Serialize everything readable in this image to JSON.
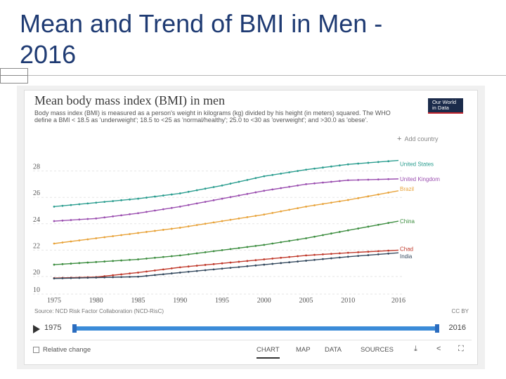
{
  "slide": {
    "title_line1": "Mean and Trend of BMI in Men -",
    "title_line2": "2016"
  },
  "chart_header": {
    "title": "Mean body mass index (BMI) in men",
    "subtitle": "Body mass index (BMI) is measured as a person's weight in kilograms (kg) divided by his height (in meters) squared. The WHO define a BMI < 18.5 as 'underweight'; 18.5 to <25 as 'normal/healthy'; 25.0 to <30 as 'overweight'; and >30.0 as 'obese'.",
    "logo_line1": "Our World",
    "logo_line2": "in Data",
    "add_country": "Add country"
  },
  "chart_data": {
    "type": "line",
    "x": [
      1975,
      1980,
      1985,
      1990,
      1995,
      2000,
      2005,
      2010,
      2016
    ],
    "xticks": [
      "1975",
      "1980",
      "1985",
      "1990",
      "1995",
      "2000",
      "2005",
      "2010",
      "2016"
    ],
    "yticks": [
      "10",
      "20",
      "22",
      "24",
      "26",
      "28"
    ],
    "ylim": [
      10,
      29
    ],
    "grid": "horizontal",
    "legend": "end-of-line labels",
    "series": [
      {
        "name": "United States",
        "color": "#2a9d8f",
        "values": [
          25.3,
          25.6,
          25.9,
          26.3,
          26.9,
          27.6,
          28.1,
          28.5,
          28.8
        ]
      },
      {
        "name": "United Kingdom",
        "color": "#9b4fb0",
        "values": [
          24.2,
          24.4,
          24.8,
          25.3,
          25.9,
          26.5,
          27.0,
          27.3,
          27.4
        ]
      },
      {
        "name": "Brazil",
        "color": "#e8a33a",
        "values": [
          22.5,
          22.9,
          23.3,
          23.7,
          24.2,
          24.7,
          25.3,
          25.8,
          26.5
        ]
      },
      {
        "name": "China",
        "color": "#3e8e41",
        "values": [
          20.9,
          21.1,
          21.3,
          21.6,
          22.0,
          22.4,
          22.9,
          23.5,
          24.2
        ]
      },
      {
        "name": "Chad",
        "color": "#c0392b",
        "values": [
          19.1,
          19.7,
          20.3,
          20.7,
          21.0,
          21.3,
          21.6,
          21.8,
          22.0
        ]
      },
      {
        "name": "India",
        "color": "#34495e",
        "values": [
          18.9,
          19.4,
          19.9,
          20.3,
          20.6,
          20.9,
          21.2,
          21.5,
          21.8
        ]
      }
    ]
  },
  "source": "Source: NCD Risk Factor Collaboration (NCD-RisC)",
  "license": "CC BY",
  "timeline": {
    "start": "1975",
    "end": "2016"
  },
  "footer": {
    "relative_change": "Relative change",
    "tabs": [
      "CHART",
      "MAP",
      "DATA",
      "SOURCES"
    ],
    "active_tab": "CHART"
  }
}
